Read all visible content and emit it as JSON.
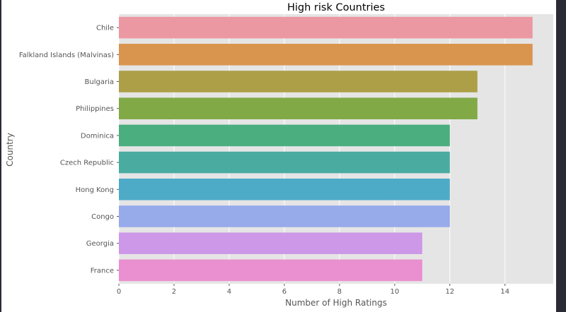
{
  "chart_data": {
    "type": "bar",
    "orientation": "horizontal",
    "title": "High risk Countries",
    "xlabel": "Number of High Ratings",
    "ylabel": "Country",
    "categories": [
      "Chile",
      "Falkland Islands (Malvinas)",
      "Bulgaria",
      "Philippines",
      "Dominica",
      "Czech Republic",
      "Hong Kong",
      "Congo",
      "Georgia",
      "France"
    ],
    "values": [
      15,
      15,
      13,
      13,
      12,
      12,
      12,
      12,
      11,
      11
    ],
    "colors": [
      "#ec98a3",
      "#d9954d",
      "#ac9f47",
      "#81aa47",
      "#4bae7f",
      "#4aaba1",
      "#4eabc8",
      "#97aaea",
      "#cd98e8",
      "#ea8fcf"
    ],
    "xlim": [
      0,
      15.75
    ],
    "xticks": [
      0,
      2,
      4,
      6,
      8,
      10,
      12,
      14
    ],
    "grid": true,
    "background": "#e5e5e5"
  }
}
